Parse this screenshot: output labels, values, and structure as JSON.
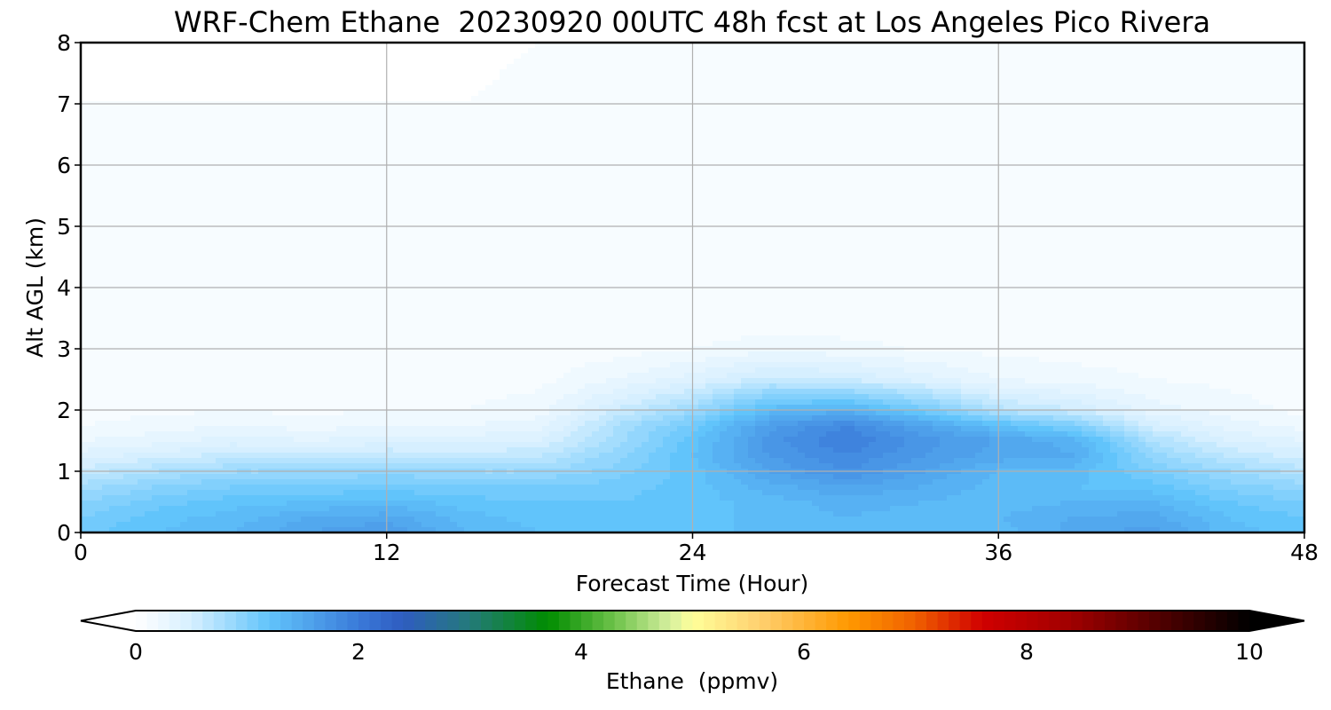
{
  "chart_data": {
    "type": "heatmap",
    "title": "WRF-Chem Ethane  20230920 00UTC 48h fcst at Los Angeles Pico Rivera",
    "xlabel": "Forecast Time (Hour)",
    "ylabel": "Alt AGL (km)",
    "xlim": [
      0,
      48
    ],
    "ylim": [
      0,
      8
    ],
    "x_ticks": [
      0,
      12,
      24,
      36,
      48
    ],
    "y_ticks": [
      0,
      1,
      2,
      3,
      4,
      5,
      6,
      7,
      8
    ],
    "grid": true,
    "x": [
      0,
      3,
      6,
      9,
      12,
      15,
      18,
      21,
      24,
      27,
      30,
      33,
      36,
      39,
      42,
      45,
      48
    ],
    "y": [
      0,
      0.25,
      0.5,
      0.75,
      1,
      1.25,
      1.5,
      1.75,
      2,
      2.5,
      3,
      3.5,
      4,
      5,
      6,
      7,
      8
    ],
    "z": [
      [
        1.1,
        1.25,
        1.35,
        1.55,
        1.65,
        1.35,
        1.25,
        1.15,
        1.2,
        1.3,
        1.25,
        1.25,
        1.3,
        1.5,
        1.6,
        1.3,
        1.2
      ],
      [
        1.05,
        1.2,
        1.3,
        1.45,
        1.5,
        1.3,
        1.2,
        1.15,
        1.2,
        1.3,
        1.35,
        1.3,
        1.35,
        1.45,
        1.5,
        1.25,
        1.15
      ],
      [
        0.95,
        1.1,
        1.2,
        1.25,
        1.3,
        1.2,
        1.15,
        1.15,
        1.2,
        1.3,
        1.4,
        1.35,
        1.3,
        1.35,
        1.35,
        1.15,
        1.05
      ],
      [
        0.8,
        0.95,
        1.05,
        1.05,
        1.1,
        1.05,
        1.05,
        1.1,
        1.2,
        1.4,
        1.55,
        1.45,
        1.3,
        1.25,
        1.2,
        1.0,
        0.9
      ],
      [
        0.6,
        0.75,
        0.85,
        0.85,
        0.9,
        0.85,
        0.85,
        1.0,
        1.2,
        1.55,
        1.75,
        1.55,
        1.35,
        1.3,
        1.05,
        0.85,
        0.7
      ],
      [
        0.4,
        0.5,
        0.6,
        0.6,
        0.65,
        0.6,
        0.65,
        0.9,
        1.25,
        1.65,
        1.85,
        1.65,
        1.5,
        1.45,
        0.9,
        0.65,
        0.5
      ],
      [
        0.25,
        0.3,
        0.4,
        0.35,
        0.4,
        0.4,
        0.45,
        0.8,
        1.2,
        1.7,
        1.95,
        1.7,
        1.55,
        1.4,
        0.75,
        0.45,
        0.35
      ],
      [
        0.15,
        0.2,
        0.25,
        0.2,
        0.25,
        0.25,
        0.3,
        0.75,
        1.1,
        1.6,
        1.85,
        1.55,
        1.25,
        1.0,
        0.5,
        0.3,
        0.2
      ],
      [
        0.1,
        0.12,
        0.15,
        0.12,
        0.15,
        0.15,
        0.2,
        0.55,
        0.85,
        1.3,
        1.4,
        1.1,
        0.7,
        0.55,
        0.3,
        0.2,
        0.12
      ],
      [
        0.08,
        0.08,
        0.1,
        0.08,
        0.08,
        0.1,
        0.12,
        0.25,
        0.4,
        0.6,
        0.55,
        0.4,
        0.25,
        0.2,
        0.15,
        0.12,
        0.1
      ],
      [
        0.07,
        0.07,
        0.07,
        0.07,
        0.07,
        0.07,
        0.08,
        0.1,
        0.15,
        0.2,
        0.18,
        0.14,
        0.12,
        0.1,
        0.1,
        0.1,
        0.1
      ],
      [
        0.06,
        0.06,
        0.06,
        0.06,
        0.06,
        0.06,
        0.06,
        0.07,
        0.08,
        0.09,
        0.09,
        0.1,
        0.11,
        0.1,
        0.11,
        0.11,
        0.11
      ],
      [
        0.06,
        0.06,
        0.06,
        0.06,
        0.06,
        0.06,
        0.06,
        0.06,
        0.07,
        0.07,
        0.08,
        0.11,
        0.12,
        0.11,
        0.11,
        0.11,
        0.1
      ],
      [
        0.05,
        0.05,
        0.05,
        0.05,
        0.05,
        0.05,
        0.05,
        0.06,
        0.08,
        0.09,
        0.08,
        0.11,
        0.12,
        0.12,
        0.11,
        0.11,
        0.1
      ],
      [
        0.05,
        0.05,
        0.05,
        0.05,
        0.05,
        0.05,
        0.06,
        0.1,
        0.1,
        0.1,
        0.11,
        0.11,
        0.11,
        0.11,
        0.12,
        0.12,
        0.1
      ],
      [
        0.05,
        0.05,
        0.05,
        0.05,
        0.05,
        0.05,
        0.06,
        0.1,
        0.1,
        0.09,
        0.08,
        0.08,
        0.08,
        0.1,
        0.12,
        0.12,
        0.1
      ],
      [
        0.04,
        0.04,
        0.04,
        0.04,
        0.04,
        0.04,
        0.05,
        0.05,
        0.05,
        0.05,
        0.05,
        0.05,
        0.05,
        0.06,
        0.09,
        0.06,
        0.05
      ]
    ],
    "colorbar": {
      "label": "Ethane  (ppmv)",
      "min": 0,
      "max": 10,
      "ticks": [
        0,
        2,
        4,
        6,
        8,
        10
      ],
      "extend": "both",
      "stops": [
        {
          "v": 0.0,
          "c": "#ffffff"
        },
        {
          "v": 0.5,
          "c": "#d6efff"
        },
        {
          "v": 1.2,
          "c": "#61c4fb"
        },
        {
          "v": 2.0,
          "c": "#3a7ad9"
        },
        {
          "v": 2.4,
          "c": "#2f5cc0"
        },
        {
          "v": 3.0,
          "c": "#247a7a"
        },
        {
          "v": 3.7,
          "c": "#008c00"
        },
        {
          "v": 4.3,
          "c": "#6ec24a"
        },
        {
          "v": 4.8,
          "c": "#d6f0a0"
        },
        {
          "v": 5.0,
          "c": "#ffff99"
        },
        {
          "v": 5.6,
          "c": "#ffd070"
        },
        {
          "v": 6.4,
          "c": "#ff9900"
        },
        {
          "v": 7.0,
          "c": "#f06000"
        },
        {
          "v": 7.6,
          "c": "#d00000"
        },
        {
          "v": 8.4,
          "c": "#a00000"
        },
        {
          "v": 9.2,
          "c": "#500000"
        },
        {
          "v": 10.0,
          "c": "#000000"
        }
      ]
    }
  }
}
